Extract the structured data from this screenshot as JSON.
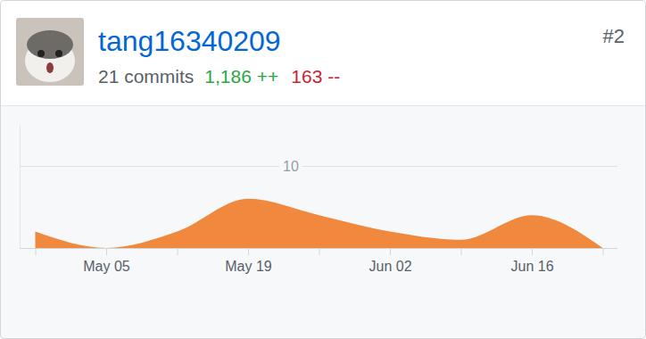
{
  "header": {
    "username": "tang16340209",
    "commits": "21 commits",
    "additions": "1,186 ++",
    "deletions": "163 --",
    "rank": "#2"
  },
  "chart_data": {
    "type": "area",
    "categories": [
      null,
      "May 05",
      null,
      "May 19",
      null,
      "Jun 02",
      null,
      "Jun 16",
      null
    ],
    "values": [
      2,
      0,
      2,
      6,
      4,
      2,
      1,
      4,
      0
    ],
    "color": "#f0883e",
    "ylim": [
      0,
      15
    ],
    "yticks": [
      10
    ],
    "grid": true
  }
}
